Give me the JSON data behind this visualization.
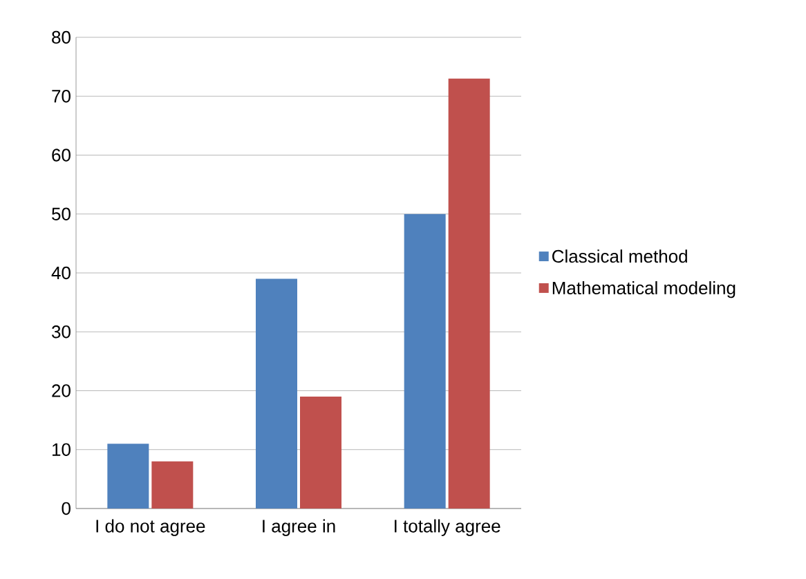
{
  "chart_data": {
    "type": "bar",
    "categories": [
      "I do not agree",
      "I agree in",
      "I totally agree"
    ],
    "series": [
      {
        "name": "Classical method",
        "color": "#4f81bd",
        "values": [
          11,
          39,
          50
        ]
      },
      {
        "name": "Mathematical modeling",
        "color": "#c0504d",
        "values": [
          8,
          19,
          73
        ]
      }
    ],
    "ylim": [
      0,
      80
    ],
    "yticks": [
      0,
      10,
      20,
      30,
      40,
      50,
      60,
      70,
      80
    ],
    "grid": "y",
    "legend": "right"
  }
}
